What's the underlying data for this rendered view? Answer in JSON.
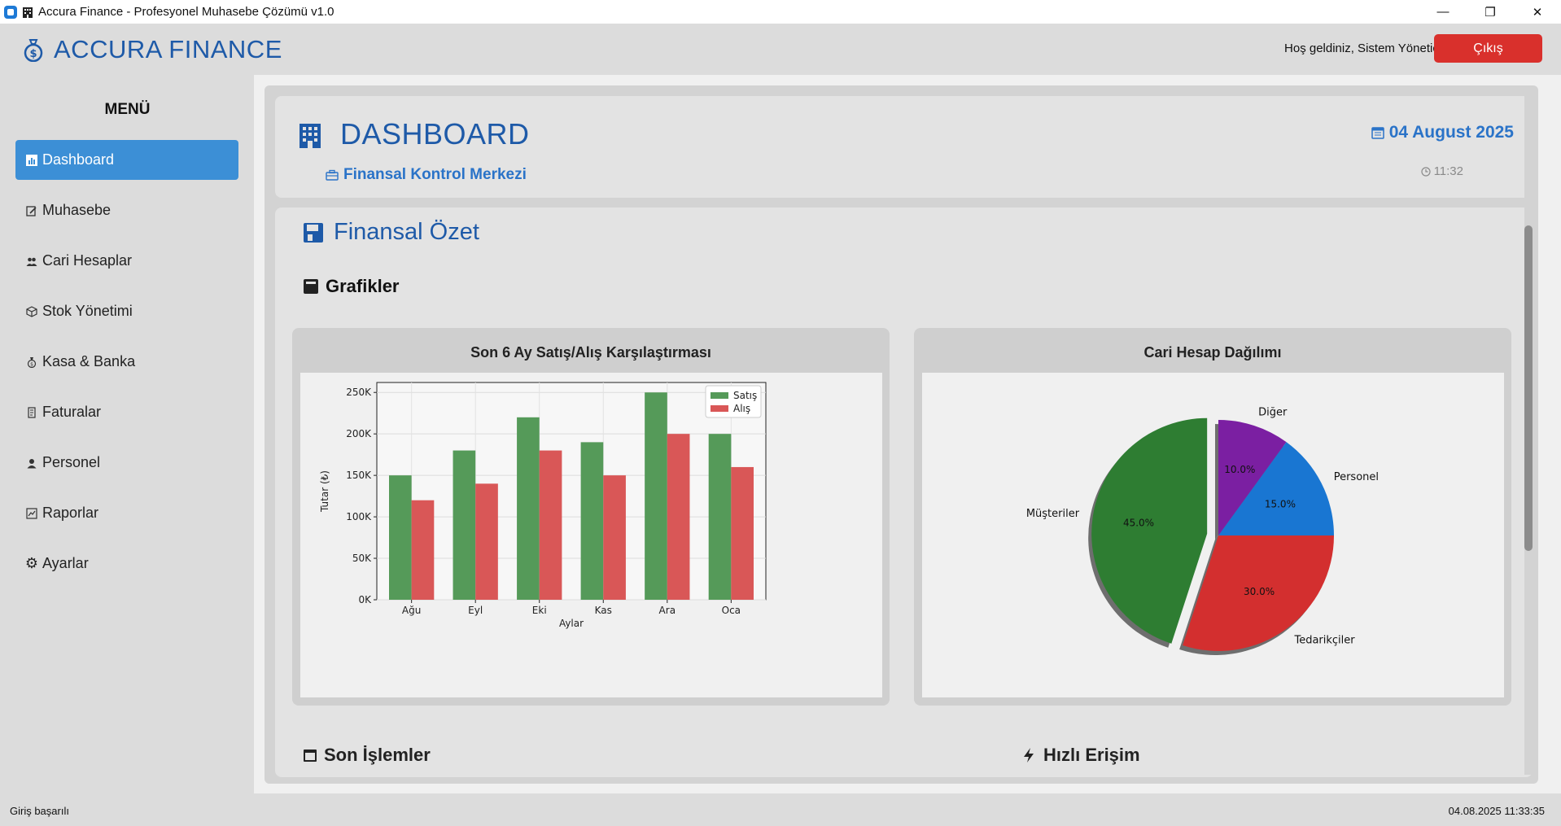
{
  "window": {
    "title": "Accura Finance - Profesyonel Muhasebe Çözümü v1.0",
    "controls": {
      "minimize": "—",
      "maximize": "❐",
      "close": "✕"
    }
  },
  "header": {
    "brand": "ACCURA FINANCE",
    "welcome": "Hoş geldiniz, Sistem Yöneticisi",
    "logout_label": "Çıkış"
  },
  "sidebar": {
    "title": "MENÜ",
    "items": [
      {
        "label": "Dashboard",
        "icon": "chart-icon"
      },
      {
        "label": "Muhasebe",
        "icon": "edit-icon"
      },
      {
        "label": "Cari Hesaplar",
        "icon": "users-icon"
      },
      {
        "label": "Stok Yönetimi",
        "icon": "package-icon"
      },
      {
        "label": "Kasa & Banka",
        "icon": "money-bag-icon"
      },
      {
        "label": "Faturalar",
        "icon": "receipt-icon"
      },
      {
        "label": "Personel",
        "icon": "person-icon"
      },
      {
        "label": "Raporlar",
        "icon": "report-icon"
      },
      {
        "label": "Ayarlar",
        "icon": "gear-icon"
      }
    ]
  },
  "dashboard": {
    "title": "DASHBOARD",
    "subtitle": "Finansal Kontrol Merkezi",
    "date": "04 August 2025",
    "time": "11:32"
  },
  "summary": {
    "title": "Finansal Özet",
    "charts_title": "Grafikler",
    "recent_title": "Son İşlemler",
    "quick_title": "Hızlı Erişim"
  },
  "colors": {
    "accent": "#1e5aa8",
    "sales": "#559a59",
    "purchases": "#d95757",
    "logout": "#d9302c",
    "active_menu": "#3c8fd6"
  },
  "chart_data": [
    {
      "type": "bar",
      "title": "Son 6 Ay Satış/Alış Karşılaştırması",
      "categories": [
        "Ağu",
        "Eyl",
        "Eki",
        "Kas",
        "Ara",
        "Oca"
      ],
      "series": [
        {
          "name": "Satış",
          "values": [
            150000,
            180000,
            220000,
            190000,
            250000,
            200000
          ],
          "color": "#559a59"
        },
        {
          "name": "Alış",
          "values": [
            120000,
            140000,
            180000,
            150000,
            200000,
            160000
          ],
          "color": "#d95757"
        }
      ],
      "xlabel": "Aylar",
      "ylabel": "Tutar (₺)",
      "ylim": [
        0,
        262000
      ],
      "yticks": [
        "0K",
        "50K",
        "100K",
        "150K",
        "200K",
        "250K"
      ],
      "legend": "top-right",
      "grid": true
    },
    {
      "type": "pie",
      "title": "Cari Hesap Dağılımı",
      "slices": [
        {
          "label": "Müşteriler",
          "value": 45.0,
          "pct": "45.0%",
          "color": "#2e7d32",
          "explode": true
        },
        {
          "label": "Tedarikçiler",
          "value": 30.0,
          "pct": "30.0%",
          "color": "#d32f2f"
        },
        {
          "label": "Personel",
          "value": 15.0,
          "pct": "15.0%",
          "color": "#1976d2"
        },
        {
          "label": "Diğer",
          "value": 10.0,
          "pct": "10.0%",
          "color": "#7b1fa2"
        }
      ]
    }
  ],
  "statusbar": {
    "left": "Giriş başarılı",
    "right": "04.08.2025 11:33:35"
  }
}
